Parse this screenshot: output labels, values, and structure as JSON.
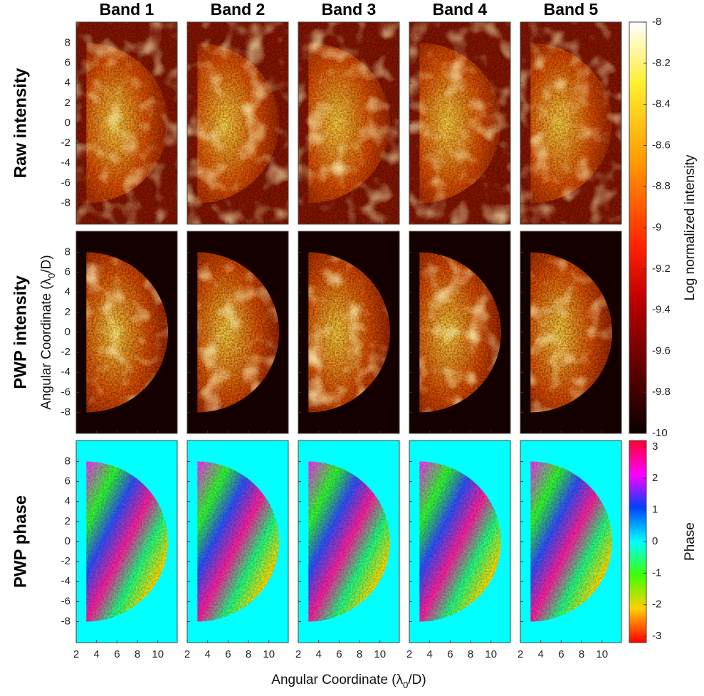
{
  "chart_data": {
    "type": "image-grid",
    "columns": [
      "Band 1",
      "Band 2",
      "Band 3",
      "Band 4",
      "Band 5"
    ],
    "rows": [
      {
        "label": "Raw intensity",
        "colormap": "hot",
        "style": "raw"
      },
      {
        "label": "PWP intensity",
        "colormap": "hot",
        "style": "masked"
      },
      {
        "label": "PWP phase",
        "colormap": "hsv",
        "style": "phase"
      }
    ],
    "xlabel": {
      "text": "Angular Coordinate (λ",
      "sub": "0",
      "tail": "/D)"
    },
    "ylabel": {
      "text": "Angular Coordinate (λ",
      "sub": "0",
      "tail": "/D)"
    },
    "xlim": [
      2,
      11.9
    ],
    "xticks": [
      2,
      4,
      6,
      8,
      10
    ],
    "ylim": [
      -10.1,
      10.1
    ],
    "yticks": [
      -8,
      -6,
      -4,
      -2,
      0,
      2,
      4,
      6,
      8
    ],
    "colorbars": [
      {
        "label": "Log normalized intensity",
        "colormap": "hot",
        "rows": [
          0,
          1
        ],
        "ylim": [
          -10,
          -8
        ],
        "yticks": [
          -10,
          -9.8,
          -9.6,
          -9.4,
          -9.2,
          -9,
          -8.8,
          -8.6,
          -8.4,
          -8.2,
          -8
        ]
      },
      {
        "label": "Phase",
        "colormap": "hsv",
        "rows": [
          2
        ],
        "ylim": [
          -3.2,
          3.2
        ],
        "yticks": [
          -3,
          -2,
          -1,
          0,
          1,
          2,
          3
        ]
      }
    ]
  }
}
